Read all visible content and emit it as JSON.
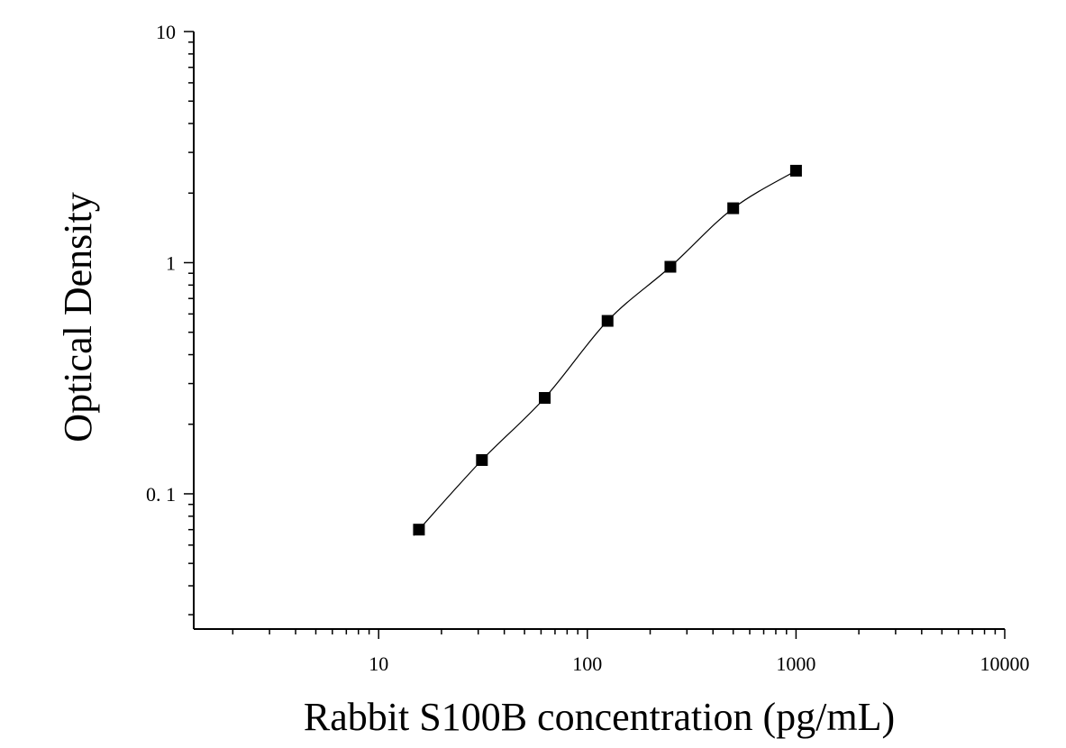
{
  "chart_data": {
    "type": "scatter",
    "title": "",
    "xlabel": "Rabbit S100B concentration (pg/mL)",
    "ylabel": "Optical Density",
    "x_scale": "log",
    "y_scale": "log",
    "xlim": [
      1.3,
      10000
    ],
    "ylim": [
      0.026,
      10
    ],
    "x_ticks": [
      10,
      100,
      1000,
      10000
    ],
    "x_tick_labels": [
      "10",
      "100",
      "1000",
      "10000"
    ],
    "y_ticks": [
      0.1,
      1,
      10
    ],
    "y_tick_labels": [
      "0. 1",
      "1",
      "10"
    ],
    "grid": false,
    "legend": "none",
    "series": [
      {
        "points": [
          {
            "x": 15.6,
            "y": 0.07
          },
          {
            "x": 31.25,
            "y": 0.14
          },
          {
            "x": 62.5,
            "y": 0.26
          },
          {
            "x": 125,
            "y": 0.56
          },
          {
            "x": 250,
            "y": 0.96
          },
          {
            "x": 500,
            "y": 1.72
          },
          {
            "x": 1000,
            "y": 2.5
          }
        ]
      }
    ],
    "fit_curve": true,
    "colors": {
      "marker": "#000000",
      "curve": "#000000",
      "axis": "#000000"
    }
  }
}
